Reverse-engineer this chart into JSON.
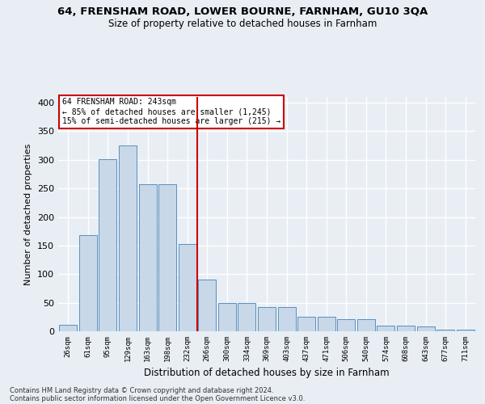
{
  "title1": "64, FRENSHAM ROAD, LOWER BOURNE, FARNHAM, GU10 3QA",
  "title2": "Size of property relative to detached houses in Farnham",
  "xlabel": "Distribution of detached houses by size in Farnham",
  "ylabel": "Number of detached properties",
  "bar_color": "#c8d8e8",
  "bar_edge_color": "#5a8fc0",
  "categories": [
    "26sqm",
    "61sqm",
    "95sqm",
    "129sqm",
    "163sqm",
    "198sqm",
    "232sqm",
    "266sqm",
    "300sqm",
    "334sqm",
    "369sqm",
    "403sqm",
    "437sqm",
    "471sqm",
    "506sqm",
    "540sqm",
    "574sqm",
    "608sqm",
    "643sqm",
    "677sqm",
    "711sqm"
  ],
  "values": [
    11,
    168,
    301,
    325,
    258,
    258,
    153,
    91,
    50,
    50,
    43,
    43,
    26,
    26,
    21,
    21,
    10,
    10,
    8,
    3,
    3
  ],
  "vline_color": "#cc0000",
  "annotation_text": "64 FRENSHAM ROAD: 243sqm\n← 85% of detached houses are smaller (1,245)\n15% of semi-detached houses are larger (215) →",
  "annotation_box_color": "#ffffff",
  "annotation_box_edge_color": "#cc0000",
  "footer1": "Contains HM Land Registry data © Crown copyright and database right 2024.",
  "footer2": "Contains public sector information licensed under the Open Government Licence v3.0.",
  "ylim": [
    0,
    410
  ],
  "background_color": "#e8eef4",
  "grid_color": "#ffffff"
}
